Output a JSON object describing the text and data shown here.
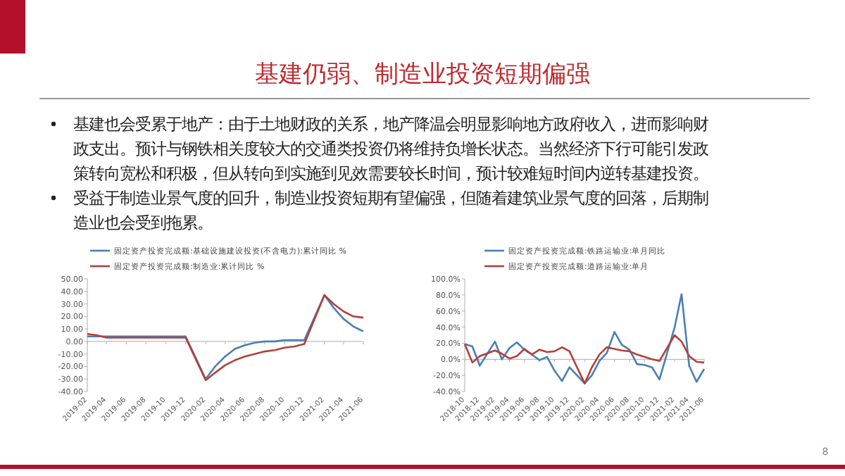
{
  "chart_data": [
    {
      "type": "other",
      "title": "基建仍弱、制造业投资短期偏强",
      "annotations": [
        "基建也会受累于地产：由于土地财政的关系，地产降温会明显影响地方政府收入，进而影响财政支出。预计与钢铁相关度较大的交通类投资仍将维持负增长状态。当然经济下行可能引发政策转向宽松和积极，但从转向到实施到见效需要较长时间，预计较难短时间内逆转基建投资。",
        "受益于制造业景气度的回升，制造业投资短期有望偏强，但随着建筑业景气度的回落，后期制造业也会受到拖累。",
        "8"
      ]
    },
    {
      "type": "line",
      "legend": "top left",
      "x": [
        "2019-02",
        "2019-03",
        "2019-04",
        "2019-05",
        "2019-06",
        "2019-07",
        "2019-08",
        "2019-09",
        "2019-10",
        "2019-11",
        "2019-12",
        "2020-02",
        "2020-03",
        "2020-04",
        "2020-05",
        "2020-06",
        "2020-07",
        "2020-08",
        "2020-09",
        "2020-10",
        "2020-11",
        "2020-12",
        "2021-02",
        "2021-03",
        "2021-04",
        "2021-05",
        "2021-06"
      ],
      "xlim": [
        "2019-02",
        "2021-06"
      ],
      "xticks": [
        "2019-02",
        "2019-04",
        "2019-06",
        "2019-08",
        "2019-10",
        "2019-12",
        "2020-02",
        "2020-04",
        "2020-06",
        "2020-08",
        "2020-10",
        "2020-12",
        "2021-02",
        "2021-04",
        "2021-06"
      ],
      "ylim": [
        -40,
        50
      ],
      "yticks": [
        {
          "value": -40,
          "label": "-40.00"
        },
        {
          "value": -30,
          "label": "-30.00"
        },
        {
          "value": -20,
          "label": "-20.00"
        },
        {
          "value": -10,
          "label": "-10.00"
        },
        {
          "value": 0,
          "label": "0.00"
        },
        {
          "value": 10,
          "label": "10.00"
        },
        {
          "value": 20,
          "label": "20.00"
        },
        {
          "value": 30,
          "label": "30.00"
        },
        {
          "value": 40,
          "label": "40.00"
        },
        {
          "value": 50,
          "label": "50.00"
        }
      ],
      "series": [
        {
          "name": "固定资产投资完成额:基础设施建设投资(不含电力):累计同比 %",
          "color": "#4a7fb5",
          "values": [
            4,
            4,
            4,
            4,
            4,
            4,
            4,
            4,
            4,
            4,
            4,
            -30,
            -20,
            -12,
            -6,
            -3,
            -1,
            0,
            0,
            1,
            1,
            1,
            37,
            27,
            18,
            12,
            8
          ]
        },
        {
          "name": "固定资产投资完成额:制造业:累计同比 %",
          "color": "#b5403a",
          "values": [
            6,
            5,
            3,
            3,
            3,
            3,
            3,
            3,
            3,
            3,
            3,
            -31,
            -25,
            -19,
            -15,
            -12,
            -10,
            -8,
            -7,
            -5,
            -4,
            -2,
            37,
            30,
            24,
            20,
            19
          ]
        }
      ]
    },
    {
      "type": "line",
      "legend": "top left",
      "x": [
        "2018-10",
        "2018-11",
        "2018-12",
        "2019-02",
        "2019-03",
        "2019-04",
        "2019-05",
        "2019-06",
        "2019-07",
        "2019-08",
        "2019-09",
        "2019-10",
        "2019-11",
        "2019-12",
        "2020-02",
        "2020-03",
        "2020-04",
        "2020-05",
        "2020-06",
        "2020-07",
        "2020-08",
        "2020-09",
        "2020-10",
        "2020-11",
        "2020-12",
        "2021-02",
        "2021-03",
        "2021-04",
        "2021-05",
        "2021-06"
      ],
      "xlim": [
        "2018-10",
        "2021-06"
      ],
      "xticks": [
        "2018-10",
        "2018-12",
        "2019-02",
        "2019-04",
        "2019-06",
        "2019-08",
        "2019-10",
        "2019-12",
        "2020-02",
        "2020-04",
        "2020-06",
        "2020-08",
        "2020-10",
        "2020-12",
        "2021-02",
        "2021-04",
        "2021-06"
      ],
      "ylim": [
        -40,
        100
      ],
      "yticks": [
        {
          "value": -40,
          "label": "-40.0%"
        },
        {
          "value": -20,
          "label": "-20.0%"
        },
        {
          "value": 0,
          "label": "0.0%"
        },
        {
          "value": 20,
          "label": "20.0%"
        },
        {
          "value": 40,
          "label": "40.0%"
        },
        {
          "value": 60,
          "label": "60.0%"
        },
        {
          "value": 80,
          "label": "80.0%"
        },
        {
          "value": 100,
          "label": "100.0%"
        }
      ],
      "series": [
        {
          "name": "固定资产投资完成额:铁路运输业:单月同比",
          "color": "#4a7fb5",
          "values": [
            19,
            16,
            -8,
            22,
            0,
            14,
            21,
            12,
            6,
            -1,
            3,
            -14,
            -27,
            -10,
            -30,
            -20,
            -2,
            8,
            34,
            18,
            12,
            -6,
            -7,
            -10,
            -25,
            40,
            81,
            -8,
            -28,
            -12
          ]
        },
        {
          "name": "固定资产投资完成额:道路运输业:单月",
          "color": "#b5403a",
          "values": [
            19,
            -4,
            4,
            11,
            7,
            1,
            4,
            13,
            6,
            12,
            9,
            10,
            15,
            10,
            -30,
            -10,
            6,
            15,
            13,
            11,
            10,
            6,
            3,
            0,
            -2,
            30,
            22,
            4,
            -3,
            -4
          ]
        }
      ]
    }
  ]
}
